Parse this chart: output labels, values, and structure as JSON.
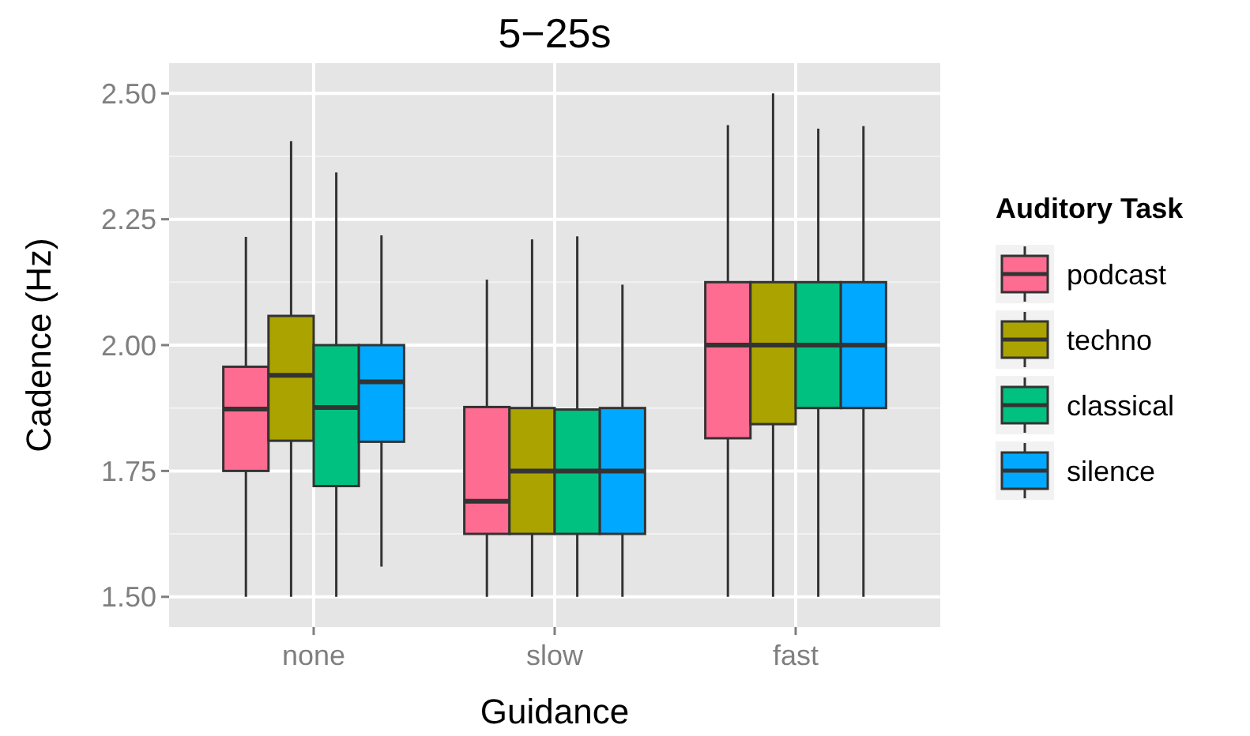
{
  "chart_data": {
    "type": "box",
    "title": "5−25s",
    "xlabel": "Guidance",
    "ylabel": "Cadence (Hz)",
    "legend_title": "Auditory Task",
    "categories": [
      "none",
      "slow",
      "fast"
    ],
    "ylim": [
      1.44,
      2.56
    ],
    "yticks": [
      {
        "value": 1.5,
        "label": "1.50"
      },
      {
        "value": 1.75,
        "label": "1.75"
      },
      {
        "value": 2.0,
        "label": "2.00"
      },
      {
        "value": 2.25,
        "label": "2.25"
      },
      {
        "value": 2.5,
        "label": "2.50"
      }
    ],
    "grid": true,
    "legend": "right",
    "series": [
      {
        "name": "podcast",
        "color": "#ff6c91",
        "boxes": [
          {
            "low": 1.5,
            "q1": 1.75,
            "median": 1.873,
            "q3": 1.957,
            "high": 2.215
          },
          {
            "low": 1.5,
            "q1": 1.625,
            "median": 1.69,
            "q3": 1.877,
            "high": 2.13
          },
          {
            "low": 1.5,
            "q1": 1.815,
            "median": 2.0,
            "q3": 2.125,
            "high": 2.437
          }
        ]
      },
      {
        "name": "techno",
        "color": "#aba300",
        "boxes": [
          {
            "low": 1.5,
            "q1": 1.81,
            "median": 1.94,
            "q3": 2.058,
            "high": 2.405
          },
          {
            "low": 1.5,
            "q1": 1.625,
            "median": 1.75,
            "q3": 1.875,
            "high": 2.21
          },
          {
            "low": 1.5,
            "q1": 1.843,
            "median": 2.0,
            "q3": 2.125,
            "high": 2.5
          }
        ]
      },
      {
        "name": "classical",
        "color": "#00c17f",
        "boxes": [
          {
            "low": 1.5,
            "q1": 1.72,
            "median": 1.876,
            "q3": 2.0,
            "high": 2.343
          },
          {
            "low": 1.5,
            "q1": 1.625,
            "median": 1.75,
            "q3": 1.872,
            "high": 2.216
          },
          {
            "low": 1.5,
            "q1": 1.875,
            "median": 2.0,
            "q3": 2.125,
            "high": 2.43
          }
        ]
      },
      {
        "name": "silence",
        "color": "#00a9ff",
        "boxes": [
          {
            "low": 1.56,
            "q1": 1.808,
            "median": 1.927,
            "q3": 2.0,
            "high": 2.218
          },
          {
            "low": 1.5,
            "q1": 1.625,
            "median": 1.75,
            "q3": 1.875,
            "high": 2.12
          },
          {
            "low": 1.5,
            "q1": 1.875,
            "median": 2.0,
            "q3": 2.125,
            "high": 2.435
          }
        ]
      }
    ]
  }
}
